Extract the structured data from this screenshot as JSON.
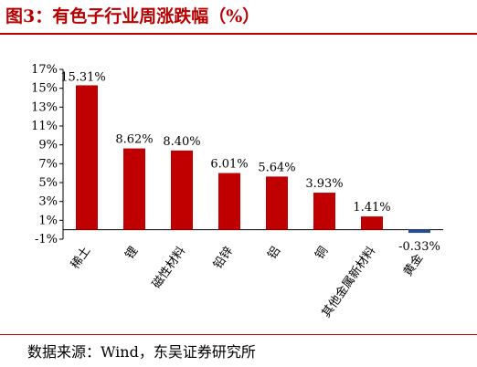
{
  "title": "图3：有色子行业周涨跌幅（%）",
  "source": "数据来源：Wind，东吴证券研究所",
  "colors": {
    "bar": "#c00000",
    "negative_bar": "#1f4e9f",
    "title": "#b80000"
  },
  "chart_data": {
    "type": "bar",
    "title": "图3：有色子行业周涨跌幅（%）",
    "xlabel": "",
    "ylabel": "",
    "ylim": [
      -1,
      17
    ],
    "yticks": [
      "-1%",
      "1%",
      "3%",
      "5%",
      "7%",
      "9%",
      "11%",
      "13%",
      "15%",
      "17%"
    ],
    "grid": false,
    "categories": [
      "稀土",
      "锂",
      "磁性材料",
      "铅锌",
      "铝",
      "铜",
      "其他金属新材料",
      "黄金"
    ],
    "values": [
      15.31,
      8.62,
      8.4,
      6.01,
      5.64,
      3.93,
      1.41,
      -0.33
    ],
    "value_labels": [
      "15.31%",
      "8.62%",
      "8.40%",
      "6.01%",
      "5.64%",
      "3.93%",
      "1.41%",
      "-0.33%"
    ]
  }
}
